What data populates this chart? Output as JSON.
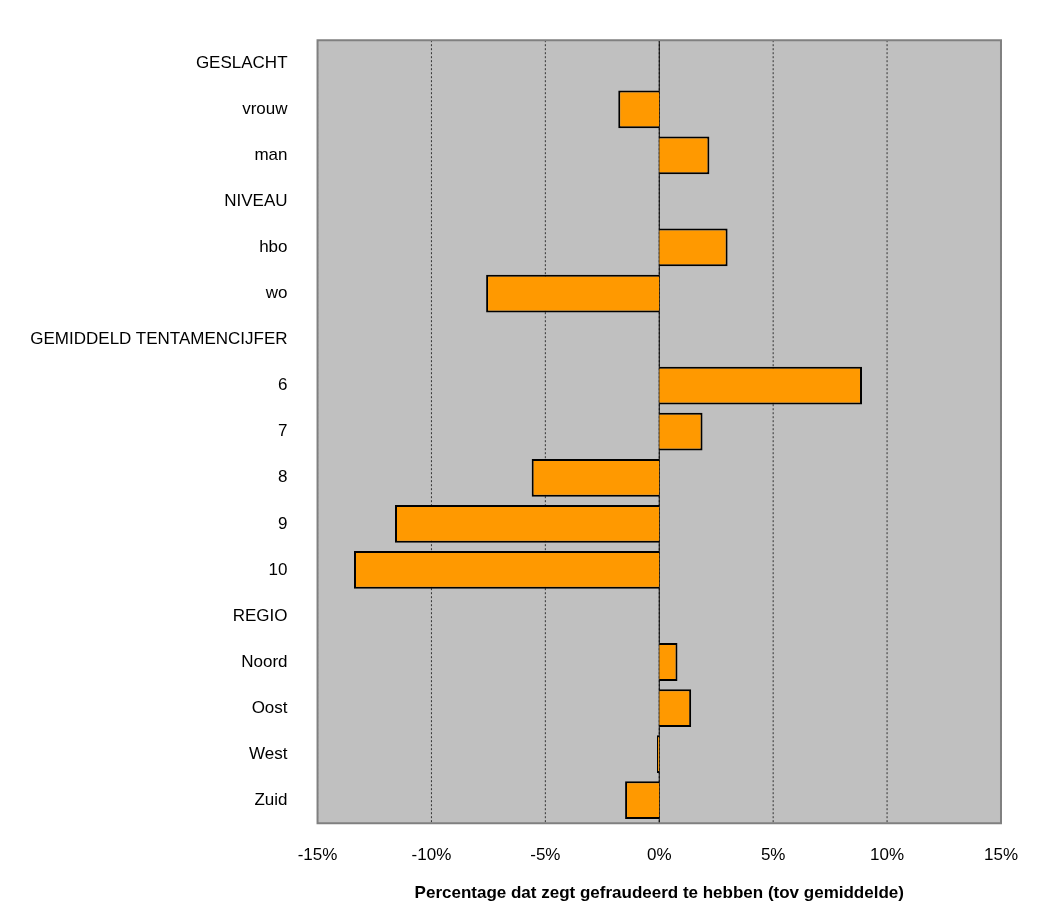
{
  "chart_data": {
    "type": "bar",
    "orientation": "horizontal",
    "xlabel": "Percentage dat zegt gefraudeerd te hebben (tov gemiddelde)",
    "categories": [
      "GESLACHT",
      "vrouw",
      "man",
      "NIVEAU",
      "hbo",
      "wo",
      "GEMIDDELD TENTAMENCIJFER",
      "6",
      "7",
      "8",
      "9",
      "10",
      "REGIO",
      "Noord",
      "Oost",
      "West",
      "Zuid"
    ],
    "values": [
      null,
      -1.8,
      2.2,
      null,
      3.0,
      -7.6,
      null,
      8.9,
      1.9,
      -5.6,
      -11.6,
      -13.4,
      null,
      0.8,
      1.4,
      -0.1,
      -1.5
    ],
    "color": "#ff9900",
    "xlim": [
      -15,
      15
    ],
    "xticks": [
      {
        "value": -15,
        "label": "-15%"
      },
      {
        "value": -10,
        "label": "-10%"
      },
      {
        "value": -5,
        "label": "-5%"
      },
      {
        "value": 0,
        "label": "0%"
      },
      {
        "value": 5,
        "label": "5%"
      },
      {
        "value": 10,
        "label": "10%"
      },
      {
        "value": 15,
        "label": "15%"
      }
    ],
    "grid": "x",
    "legend": false
  }
}
